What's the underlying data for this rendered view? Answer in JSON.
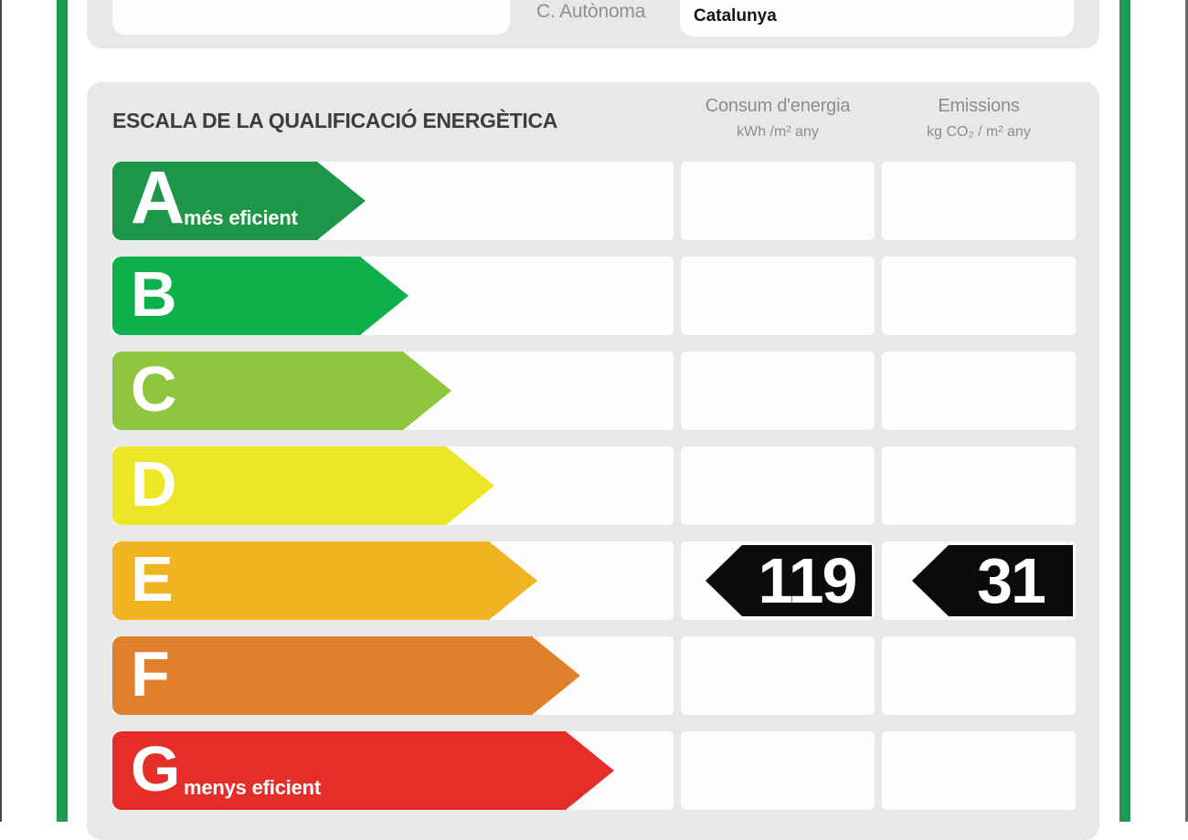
{
  "frame": {
    "green_color": "#1b9c4e",
    "panel_color": "#e9e8e8"
  },
  "top_form": {
    "field1_value": "",
    "label": "C. Autònoma",
    "value": "Catalunya"
  },
  "scale": {
    "title": "ESCALA DE LA QUALIFICACIÓ ENERGÈTICA",
    "columns": [
      {
        "title": "Consum d'energia",
        "unit": "kWh /m²  any"
      },
      {
        "title": "Emissions",
        "unit": "kg CO₂  / m²  any"
      }
    ],
    "rows": [
      {
        "letter": "A",
        "note": "més eficient",
        "color": "#1e9648",
        "arrow_width": 277,
        "consum": null,
        "emissions": null
      },
      {
        "letter": "B",
        "note": "",
        "color": "#0db14b",
        "arrow_width": 324,
        "consum": null,
        "emissions": null
      },
      {
        "letter": "C",
        "note": "",
        "color": "#8fc640",
        "arrow_width": 371,
        "consum": null,
        "emissions": null
      },
      {
        "letter": "D",
        "note": "",
        "color": "#ece627",
        "arrow_width": 418,
        "consum": null,
        "emissions": null
      },
      {
        "letter": "E",
        "note": "",
        "color": "#f0b322",
        "arrow_width": 465,
        "consum": "119",
        "emissions": "31"
      },
      {
        "letter": "F",
        "note": "",
        "color": "#e0802c",
        "arrow_width": 512,
        "consum": null,
        "emissions": null
      },
      {
        "letter": "G",
        "note": "menys eficient",
        "color": "#e62e29",
        "arrow_width": 549,
        "consum": null,
        "emissions": null
      }
    ]
  },
  "chart_data": {
    "type": "bar",
    "title": "ESCALA DE LA QUALIFICACIÓ ENERGÈTICA",
    "categories": [
      "A",
      "B",
      "C",
      "D",
      "E",
      "F",
      "G"
    ],
    "series": [
      {
        "name": "Consum d'energia (kWh/m² any)",
        "values": [
          null,
          null,
          null,
          null,
          119,
          null,
          null
        ]
      },
      {
        "name": "Emissions (kg CO₂/m² any)",
        "values": [
          null,
          null,
          null,
          null,
          31,
          null,
          null
        ]
      }
    ],
    "rating_letter": "E",
    "annotations": [
      "A = més eficient",
      "G = menys eficient"
    ],
    "region_label": "C. Autònoma",
    "region_value": "Catalunya"
  }
}
